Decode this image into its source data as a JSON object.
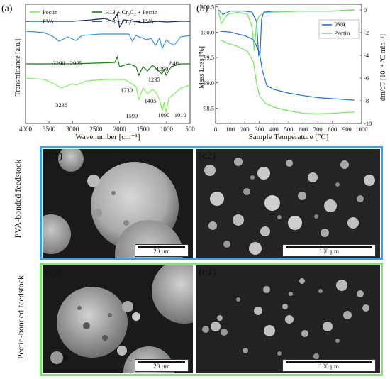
{
  "panels": {
    "a_label": "(a)",
    "b_label": "(b)"
  },
  "chart_data": [
    {
      "type": "line",
      "panel": "(a)",
      "xlabel": "Wavenumber [cm⁻¹]",
      "ylabel": "Transmittance [a.u.]",
      "xlim": [
        4000,
        500
      ],
      "x_ticks": [
        "4000",
        "3500",
        "3000",
        "2500",
        "2000",
        "1500",
        "1000",
        "500"
      ],
      "legend_position": "top",
      "legend": [
        {
          "name": "Pectin",
          "color": "#7ef05a"
        },
        {
          "name": "H13 + Cr₃C₂ + Pectin",
          "color": "#1e7a1e"
        },
        {
          "name": "PVA",
          "color": "#3b8fe0"
        },
        {
          "name": "H13 + Cr₃C₂ + PVA",
          "color": "#0d2a5c"
        }
      ],
      "series": [
        {
          "name": "H13 + Cr₃C₂ + PVA",
          "color": "#0d2a5c",
          "x": [
            4000,
            3500,
            3000,
            2600,
            2300,
            2150,
            2050,
            2000,
            1900,
            1700,
            1500,
            1200,
            1000,
            700,
            500
          ],
          "y": [
            9.0,
            9.0,
            9.0,
            9.1,
            9.2,
            9.0,
            9.5,
            8.6,
            9.1,
            9.0,
            8.9,
            9.0,
            8.95,
            9.0,
            9.0
          ]
        },
        {
          "name": "PVA",
          "color": "#3b8fe0",
          "x": [
            4000,
            3600,
            3400,
            3290,
            3100,
            2925,
            2800,
            2400,
            2000,
            1800,
            1730,
            1650,
            1430,
            1330,
            1235,
            1150,
            1090,
            1000,
            940,
            840,
            700,
            500
          ],
          "y": [
            8.3,
            8.2,
            7.9,
            7.6,
            7.9,
            7.65,
            8.0,
            8.1,
            8.1,
            8.1,
            7.6,
            8.0,
            7.7,
            7.8,
            7.3,
            7.8,
            7.1,
            7.7,
            7.5,
            7.3,
            7.9,
            8.0
          ]
        },
        {
          "name": "H13 + Cr₃C₂ + Pectin",
          "color": "#1e7a1e",
          "x": [
            4000,
            3500,
            3000,
            2500,
            2100,
            2050,
            2000,
            1800,
            1650,
            1590,
            1500,
            1405,
            1300,
            1100,
            1050,
            1010,
            900,
            700,
            500
          ],
          "y": [
            6.0,
            6.0,
            6.0,
            6.05,
            6.1,
            6.5,
            5.8,
            6.0,
            5.8,
            5.2,
            5.8,
            5.5,
            5.9,
            5.3,
            5.6,
            5.2,
            5.8,
            6.0,
            6.0
          ]
        },
        {
          "name": "Pectin",
          "color": "#7ef05a",
          "x": [
            4000,
            3600,
            3400,
            3236,
            3000,
            2925,
            2700,
            2300,
            1900,
            1740,
            1650,
            1590,
            1500,
            1405,
            1300,
            1230,
            1150,
            1090,
            1050,
            1010,
            950,
            830,
            700,
            500
          ],
          "y": [
            5.0,
            4.9,
            4.6,
            4.3,
            4.6,
            4.5,
            4.8,
            4.9,
            4.9,
            4.6,
            4.4,
            3.5,
            4.3,
            3.9,
            4.2,
            4.0,
            3.5,
            2.7,
            3.3,
            2.6,
            3.6,
            3.9,
            4.3,
            4.5
          ]
        }
      ],
      "annotations": [
        {
          "text": "3290",
          "x": 3290
        },
        {
          "text": "2925",
          "x": 2925
        },
        {
          "text": "1730",
          "x": 1730
        },
        {
          "text": "1235",
          "x": 1235
        },
        {
          "text": "1090",
          "x": 1090
        },
        {
          "text": "840",
          "x": 840
        },
        {
          "text": "3236",
          "x": 3236
        },
        {
          "text": "1590",
          "x": 1590
        },
        {
          "text": "1405",
          "x": 1405
        },
        {
          "text": "1090",
          "x": 1090
        },
        {
          "text": "1010",
          "x": 1010
        }
      ]
    },
    {
      "type": "line",
      "panel": "(b)",
      "xlabel": "Sample Temperature [°C]",
      "ylabel": "Mass Loss [%]",
      "ylabel_right": "dm/dT [10⁻⁴ °C min⁻¹]",
      "xlim": [
        0,
        1000
      ],
      "ylim": [
        98.2,
        100.55
      ],
      "ylim_right": [
        -10,
        0.5
      ],
      "x_ticks": [
        "0",
        "100",
        "200",
        "300",
        "400",
        "500",
        "600",
        "700",
        "800",
        "900",
        "1000"
      ],
      "y_ticks": [
        "98.5",
        "99.0",
        "99.5",
        "100.0",
        "100.5"
      ],
      "y_ticks_right": [
        "0",
        "-2",
        "-4",
        "-6",
        "-8",
        "-10"
      ],
      "legend_position": "right",
      "legend": [
        {
          "name": "PVA",
          "color": "#1f6fd6"
        },
        {
          "name": "Pectin",
          "color": "#6fe85a"
        }
      ],
      "series": [
        {
          "name": "PVA",
          "axis": "left",
          "color": "#1f6fd6",
          "x": [
            30,
            100,
            200,
            260,
            300,
            320,
            350,
            380,
            400,
            500,
            600,
            700,
            800,
            900,
            950
          ],
          "y": [
            100.02,
            100.0,
            99.93,
            99.85,
            99.6,
            99.25,
            98.95,
            98.9,
            98.87,
            98.8,
            98.75,
            98.71,
            98.69,
            98.67,
            98.66
          ]
        },
        {
          "name": "Pectin",
          "axis": "left",
          "color": "#6fe85a",
          "x": [
            30,
            80,
            150,
            220,
            260,
            280,
            300,
            340,
            400,
            500,
            600,
            700,
            800,
            900,
            950
          ],
          "y": [
            99.85,
            99.78,
            99.72,
            99.62,
            99.4,
            99.0,
            98.75,
            98.6,
            98.52,
            98.45,
            98.4,
            98.39,
            98.4,
            98.42,
            98.43
          ]
        },
        {
          "name": "PVA dm/dT",
          "axis": "right",
          "color": "#1f6fd6",
          "x": [
            20,
            50,
            100,
            200,
            250,
            280,
            295,
            305,
            315,
            330,
            400,
            600,
            800,
            950
          ],
          "y": [
            0,
            -0.4,
            -0.1,
            -0.1,
            -0.2,
            -1.0,
            -4.0,
            -3.8,
            -0.8,
            -0.2,
            -0.1,
            -0.1,
            -0.1,
            0
          ]
        },
        {
          "name": "Pectin dm/dT",
          "axis": "right",
          "color": "#6fe85a",
          "x": [
            20,
            40,
            80,
            150,
            220,
            250,
            265,
            280,
            295,
            320,
            400,
            600,
            800,
            950
          ],
          "y": [
            -0.2,
            -1.2,
            -0.4,
            -0.2,
            -0.4,
            -1.5,
            -3.6,
            -1.2,
            -0.6,
            -0.3,
            -0.2,
            -0.1,
            -0.1,
            0
          ]
        }
      ]
    }
  ],
  "micrographs": {
    "row1_label": "PVA-bonded feedstock",
    "row2_label": "Pectin-bonded feedstock",
    "row1_color": "#3aa0e8",
    "row2_color": "#86e07a",
    "images": [
      {
        "label": "(c1)",
        "scale": "20 µm"
      },
      {
        "label": "(c2)",
        "scale": "100 µm"
      },
      {
        "label": "(c3)",
        "scale": "20 µm"
      },
      {
        "label": "(c4)",
        "scale": "100 µm"
      }
    ]
  }
}
